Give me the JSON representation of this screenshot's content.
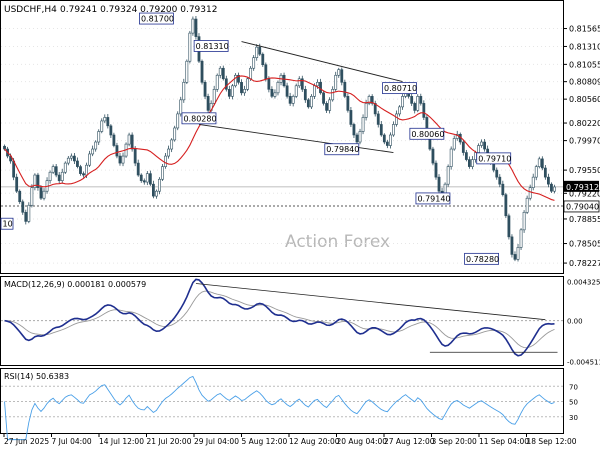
{
  "header": {
    "symbol": "USDCHF,H4",
    "ohlc": "0.79241 0.79324 0.79200 0.79312"
  },
  "watermark": "Action Forex",
  "colors": {
    "candle": "#2f4f5f",
    "ma": "#d62020",
    "macd": "#1f2f8f",
    "signal": "#9a9a9a",
    "rsi": "#4aa0e8",
    "trendline": "#222222",
    "label_border": "#1f2f8f"
  },
  "chart_data": [
    {
      "type": "candlestick",
      "title": "USDCHF,H4",
      "ylim": [
        0.781,
        0.819
      ],
      "y_ticks": [
        "0.81565",
        "0.81310",
        "0.81055",
        "0.80809",
        "0.80560",
        "0.80220",
        "0.79970",
        "0.79550",
        "0.79220",
        "0.78855",
        "0.78505",
        "0.78227"
      ],
      "current_price": "0.79312",
      "support_line": "0.79040",
      "price_labels": [
        {
          "text": "0.81700",
          "x": 55,
          "y": 0.817
        },
        {
          "text": "0.81310",
          "x": 75,
          "y": 0.8131
        },
        {
          "text": "0.80280",
          "x": 70,
          "y": 0.8028
        },
        {
          "text": "0.79840",
          "x": 122,
          "y": 0.7984
        },
        {
          "text": "0.80710",
          "x": 143,
          "y": 0.8071
        },
        {
          "text": "0.80060",
          "x": 153,
          "y": 0.8006
        },
        {
          "text": "0.79710",
          "x": 177,
          "y": 0.7971
        },
        {
          "text": "0.79140",
          "x": 155,
          "y": 0.7914
        },
        {
          "text": "0.78280",
          "x": 173,
          "y": 0.7828
        },
        {
          "text": "10",
          "x": 2,
          "y": 0.7878
        }
      ],
      "closes": [
        0.7985,
        0.7975,
        0.7968,
        0.7945,
        0.7925,
        0.791,
        0.7895,
        0.7882,
        0.7905,
        0.793,
        0.7948,
        0.793,
        0.7915,
        0.7925,
        0.794,
        0.7952,
        0.796,
        0.7948,
        0.794,
        0.7952,
        0.7965,
        0.7972,
        0.7975,
        0.7968,
        0.796,
        0.795,
        0.7948,
        0.7962,
        0.7978,
        0.7985,
        0.7995,
        0.801,
        0.8025,
        0.803,
        0.8018,
        0.8005,
        0.799,
        0.7975,
        0.7965,
        0.7975,
        0.7992,
        0.8005,
        0.7985,
        0.7965,
        0.7948,
        0.794,
        0.7938,
        0.795,
        0.7935,
        0.7918,
        0.7925,
        0.7942,
        0.796,
        0.7975,
        0.7985,
        0.7998,
        0.8015,
        0.8035,
        0.8055,
        0.808,
        0.811,
        0.815,
        0.817,
        0.8145,
        0.811,
        0.808,
        0.806,
        0.804,
        0.805,
        0.807,
        0.809,
        0.81,
        0.8085,
        0.807,
        0.806,
        0.8075,
        0.809,
        0.808,
        0.8065,
        0.807,
        0.8085,
        0.81,
        0.8115,
        0.813,
        0.812,
        0.8105,
        0.8085,
        0.807,
        0.806,
        0.8065,
        0.808,
        0.809,
        0.8075,
        0.806,
        0.805,
        0.806,
        0.8075,
        0.8085,
        0.807,
        0.8055,
        0.8045,
        0.806,
        0.8075,
        0.808,
        0.8065,
        0.805,
        0.804,
        0.8055,
        0.807,
        0.809,
        0.8098,
        0.808,
        0.806,
        0.804,
        0.802,
        0.8005,
        0.7995,
        0.801,
        0.803,
        0.805,
        0.806,
        0.805,
        0.8035,
        0.802,
        0.8005,
        0.7995,
        0.799,
        0.8005,
        0.802,
        0.8035,
        0.8045,
        0.806,
        0.8071,
        0.806,
        0.805,
        0.804,
        0.806,
        0.805,
        0.803,
        0.8005,
        0.7985,
        0.7965,
        0.7945,
        0.7925,
        0.7914,
        0.7935,
        0.796,
        0.7985,
        0.8,
        0.8006,
        0.7995,
        0.798,
        0.797,
        0.796,
        0.797,
        0.798,
        0.799,
        0.7995,
        0.7985,
        0.7975,
        0.7965,
        0.7955,
        0.7945,
        0.7935,
        0.792,
        0.789,
        0.786,
        0.7835,
        0.7828,
        0.7845,
        0.787,
        0.7895,
        0.7915,
        0.793,
        0.7945,
        0.796,
        0.7971,
        0.7958,
        0.7945,
        0.7935,
        0.7925,
        0.7931
      ]
    },
    {
      "type": "line",
      "title": "MACD(12,26,9) 0.000181 0.000579",
      "y_ticks": [
        "0.004325",
        "0.00",
        "-0.004511"
      ],
      "ylim": [
        -0.0048,
        0.0046
      ]
    },
    {
      "type": "line",
      "title": "RSI(14) 50.6383",
      "y_ticks": [
        "70",
        "50",
        "30"
      ],
      "ylim": [
        10,
        90
      ]
    }
  ],
  "x_axis": {
    "labels": [
      "27 Jun 2025",
      "7 Jul 04:00",
      "14 Jul 12:00",
      "21 Jul 20:00",
      "29 Jul 04:00",
      "5 Aug 12:00",
      "12 Aug 20:00",
      "20 Aug 04:00",
      "27 Aug 12:00",
      "3 Sep 20:00",
      "11 Sep 04:00",
      "18 Sep 12:00"
    ]
  }
}
